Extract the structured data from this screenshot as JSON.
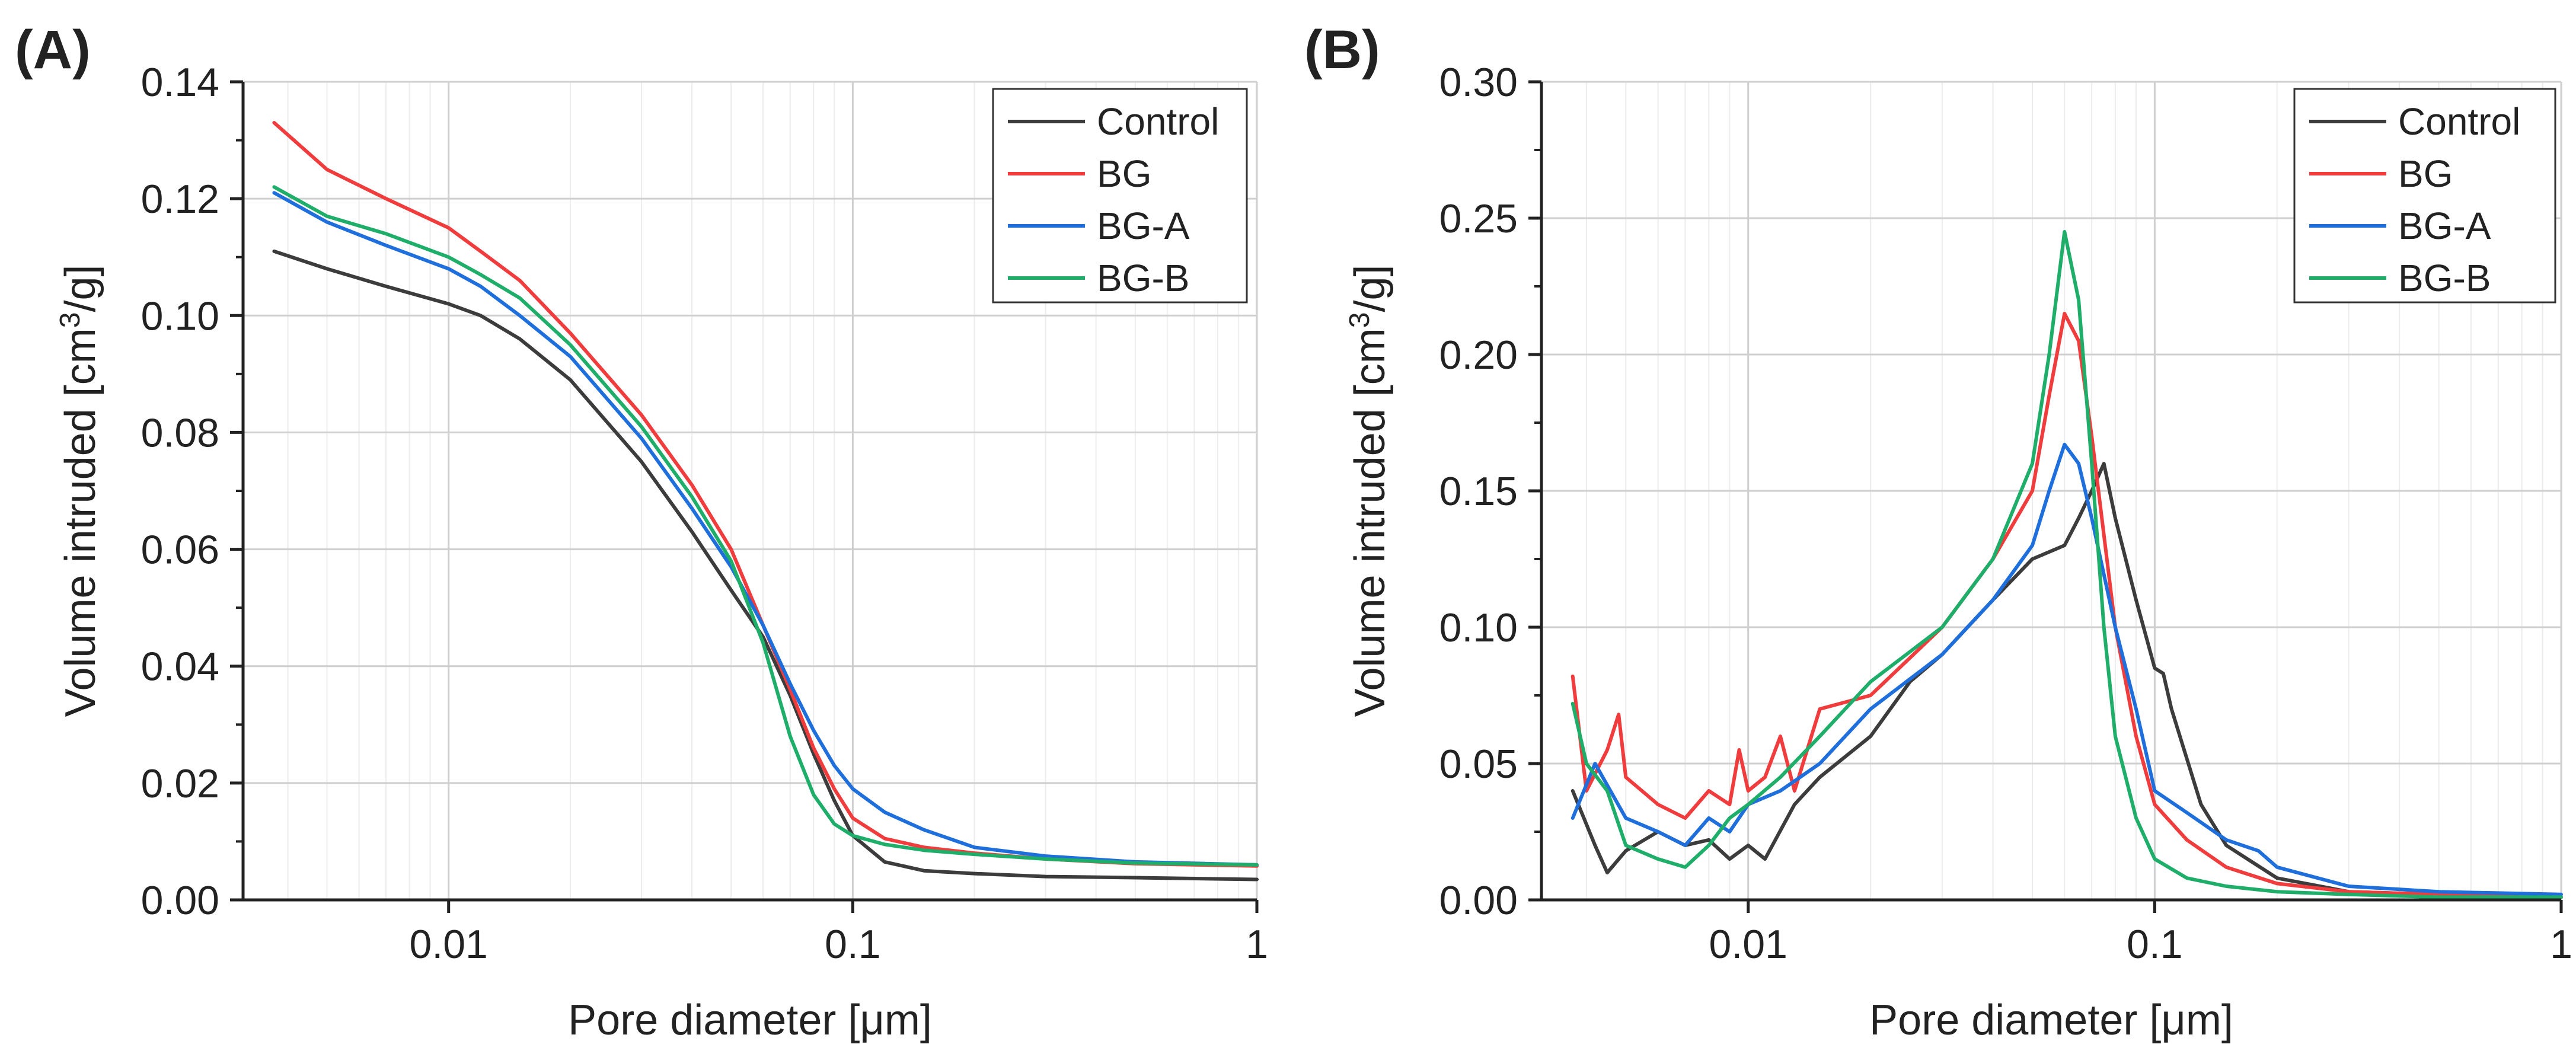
{
  "chart_data": [
    {
      "type": "line",
      "panel_label": "(A)",
      "xlabel": "Pore diameter [μm]",
      "ylabel_prefix": "Volume intruded [cm",
      "ylabel_sup": "3",
      "ylabel_suffix": "/g]",
      "xscale": "log",
      "xlim": [
        0.0031,
        1
      ],
      "ylim": [
        0,
        0.14
      ],
      "xticks": [
        0.01,
        0.1,
        1
      ],
      "xtick_labels": [
        "0.01",
        "0.1",
        "1"
      ],
      "yticks": [
        0,
        0.02,
        0.04,
        0.06,
        0.08,
        0.1,
        0.12,
        0.14
      ],
      "ytick_labels": [
        "0.00",
        "0.02",
        "0.04",
        "0.06",
        "0.08",
        "0.10",
        "0.12",
        "0.14"
      ],
      "grid": true,
      "legend_position": "top-right",
      "series": [
        {
          "name": "Control",
          "color": "#3c3c3c",
          "x": [
            0.0037,
            0.005,
            0.007,
            0.01,
            0.012,
            0.015,
            0.02,
            0.03,
            0.04,
            0.05,
            0.06,
            0.07,
            0.08,
            0.09,
            0.1,
            0.12,
            0.15,
            0.2,
            0.3,
            0.5,
            1
          ],
          "y": [
            0.111,
            0.108,
            0.105,
            0.102,
            0.1,
            0.096,
            0.089,
            0.075,
            0.063,
            0.053,
            0.045,
            0.035,
            0.025,
            0.017,
            0.011,
            0.0065,
            0.005,
            0.0045,
            0.004,
            0.0038,
            0.0035
          ]
        },
        {
          "name": "BG",
          "color": "#f03c3c",
          "x": [
            0.0037,
            0.005,
            0.007,
            0.01,
            0.012,
            0.015,
            0.02,
            0.03,
            0.04,
            0.05,
            0.06,
            0.07,
            0.08,
            0.09,
            0.1,
            0.12,
            0.15,
            0.2,
            0.3,
            0.5,
            1
          ],
          "y": [
            0.133,
            0.125,
            0.12,
            0.115,
            0.111,
            0.106,
            0.097,
            0.083,
            0.071,
            0.06,
            0.047,
            0.036,
            0.026,
            0.019,
            0.014,
            0.0105,
            0.009,
            0.008,
            0.007,
            0.0062,
            0.0058
          ]
        },
        {
          "name": "BG-A",
          "color": "#1e6fdc",
          "x": [
            0.0037,
            0.005,
            0.007,
            0.01,
            0.012,
            0.015,
            0.02,
            0.03,
            0.04,
            0.05,
            0.06,
            0.07,
            0.08,
            0.09,
            0.1,
            0.12,
            0.15,
            0.2,
            0.3,
            0.5,
            1
          ],
          "y": [
            0.121,
            0.116,
            0.112,
            0.108,
            0.105,
            0.1,
            0.093,
            0.079,
            0.067,
            0.057,
            0.047,
            0.037,
            0.029,
            0.023,
            0.019,
            0.015,
            0.012,
            0.009,
            0.0075,
            0.0065,
            0.006
          ]
        },
        {
          "name": "BG-B",
          "color": "#1fae6a",
          "x": [
            0.0037,
            0.005,
            0.007,
            0.01,
            0.012,
            0.015,
            0.02,
            0.03,
            0.04,
            0.05,
            0.06,
            0.07,
            0.08,
            0.09,
            0.1,
            0.12,
            0.15,
            0.2,
            0.3,
            0.5,
            1
          ],
          "y": [
            0.122,
            0.117,
            0.114,
            0.11,
            0.107,
            0.103,
            0.095,
            0.081,
            0.069,
            0.058,
            0.044,
            0.028,
            0.018,
            0.013,
            0.011,
            0.0095,
            0.0085,
            0.0078,
            0.007,
            0.0063,
            0.006
          ]
        }
      ]
    },
    {
      "type": "line",
      "panel_label": "(B)",
      "xlabel": "Pore diameter [μm]",
      "ylabel_prefix": "Volume intruded [cm",
      "ylabel_sup": "3",
      "ylabel_suffix": "/g]",
      "xscale": "log",
      "xlim": [
        0.0031,
        1
      ],
      "ylim": [
        0,
        0.3
      ],
      "xticks": [
        0.01,
        0.1,
        1
      ],
      "xtick_labels": [
        "0.01",
        "0.1",
        "1"
      ],
      "yticks": [
        0,
        0.05,
        0.1,
        0.15,
        0.2,
        0.25,
        0.3
      ],
      "ytick_labels": [
        "0.00",
        "0.05",
        "0.10",
        "0.15",
        "0.20",
        "0.25",
        "0.30"
      ],
      "grid": true,
      "legend_position": "top-right",
      "series": [
        {
          "name": "Control",
          "color": "#3c3c3c",
          "x": [
            0.0037,
            0.0042,
            0.0045,
            0.005,
            0.006,
            0.007,
            0.008,
            0.009,
            0.01,
            0.011,
            0.013,
            0.015,
            0.02,
            0.025,
            0.03,
            0.04,
            0.05,
            0.06,
            0.065,
            0.07,
            0.075,
            0.08,
            0.09,
            0.1,
            0.105,
            0.11,
            0.13,
            0.15,
            0.2,
            0.3,
            0.5,
            1
          ],
          "y": [
            0.04,
            0.02,
            0.01,
            0.018,
            0.025,
            0.02,
            0.022,
            0.015,
            0.02,
            0.015,
            0.035,
            0.045,
            0.06,
            0.08,
            0.09,
            0.11,
            0.125,
            0.13,
            0.14,
            0.15,
            0.16,
            0.14,
            0.11,
            0.085,
            0.083,
            0.07,
            0.035,
            0.02,
            0.008,
            0.003,
            0.002,
            0.001
          ]
        },
        {
          "name": "BG",
          "color": "#f03c3c",
          "x": [
            0.0037,
            0.004,
            0.0045,
            0.0048,
            0.005,
            0.006,
            0.007,
            0.008,
            0.009,
            0.0095,
            0.01,
            0.011,
            0.012,
            0.013,
            0.015,
            0.02,
            0.03,
            0.04,
            0.05,
            0.055,
            0.06,
            0.065,
            0.07,
            0.08,
            0.09,
            0.1,
            0.12,
            0.15,
            0.2,
            0.3,
            0.5,
            1
          ],
          "y": [
            0.082,
            0.04,
            0.055,
            0.068,
            0.045,
            0.035,
            0.03,
            0.04,
            0.035,
            0.055,
            0.04,
            0.045,
            0.06,
            0.04,
            0.07,
            0.075,
            0.1,
            0.125,
            0.15,
            0.185,
            0.215,
            0.205,
            0.17,
            0.1,
            0.06,
            0.035,
            0.022,
            0.012,
            0.006,
            0.003,
            0.002,
            0.001
          ]
        },
        {
          "name": "BG-A",
          "color": "#1e6fdc",
          "x": [
            0.0037,
            0.0042,
            0.005,
            0.006,
            0.007,
            0.008,
            0.009,
            0.01,
            0.012,
            0.015,
            0.02,
            0.03,
            0.04,
            0.05,
            0.055,
            0.06,
            0.065,
            0.07,
            0.08,
            0.09,
            0.1,
            0.12,
            0.15,
            0.18,
            0.2,
            0.3,
            0.5,
            1
          ],
          "y": [
            0.03,
            0.05,
            0.03,
            0.025,
            0.02,
            0.03,
            0.025,
            0.035,
            0.04,
            0.05,
            0.07,
            0.09,
            0.11,
            0.13,
            0.15,
            0.167,
            0.16,
            0.14,
            0.1,
            0.07,
            0.04,
            0.032,
            0.022,
            0.018,
            0.012,
            0.005,
            0.003,
            0.002
          ]
        },
        {
          "name": "BG-B",
          "color": "#1fae6a",
          "x": [
            0.0037,
            0.004,
            0.0045,
            0.005,
            0.006,
            0.007,
            0.008,
            0.009,
            0.01,
            0.012,
            0.015,
            0.02,
            0.03,
            0.04,
            0.05,
            0.055,
            0.06,
            0.065,
            0.07,
            0.075,
            0.08,
            0.09,
            0.1,
            0.12,
            0.15,
            0.2,
            0.3,
            0.5,
            1
          ],
          "y": [
            0.072,
            0.05,
            0.04,
            0.02,
            0.015,
            0.012,
            0.02,
            0.03,
            0.035,
            0.045,
            0.06,
            0.08,
            0.1,
            0.125,
            0.16,
            0.2,
            0.245,
            0.22,
            0.16,
            0.1,
            0.06,
            0.03,
            0.015,
            0.008,
            0.005,
            0.003,
            0.002,
            0.001,
            0.001
          ]
        }
      ]
    }
  ]
}
